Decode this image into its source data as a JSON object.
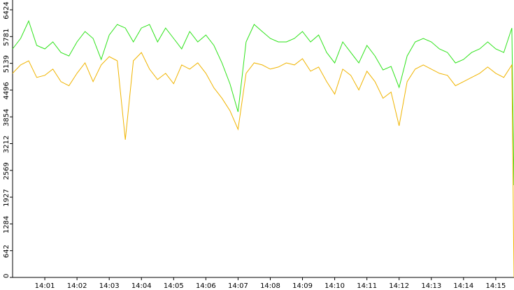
{
  "chart_data": {
    "type": "line",
    "x": [
      "14:00:00",
      "14:00:15",
      "14:00:30",
      "14:00:45",
      "14:01:00",
      "14:01:15",
      "14:01:30",
      "14:01:45",
      "14:02:00",
      "14:02:15",
      "14:02:30",
      "14:02:45",
      "14:03:00",
      "14:03:15",
      "14:03:30",
      "14:03:45",
      "14:04:00",
      "14:04:15",
      "14:04:30",
      "14:04:45",
      "14:05:00",
      "14:05:15",
      "14:05:30",
      "14:05:45",
      "14:06:00",
      "14:06:15",
      "14:06:30",
      "14:06:45",
      "14:07:00",
      "14:07:15",
      "14:07:30",
      "14:07:45",
      "14:08:00",
      "14:08:15",
      "14:08:30",
      "14:08:45",
      "14:09:00",
      "14:09:15",
      "14:09:30",
      "14:09:45",
      "14:10:00",
      "14:10:15",
      "14:10:30",
      "14:10:45",
      "14:11:00",
      "14:11:15",
      "14:11:30",
      "14:11:45",
      "14:12:00",
      "14:12:15",
      "14:12:30",
      "14:12:45",
      "14:13:00",
      "14:13:15",
      "14:13:30",
      "14:13:45",
      "14:14:00",
      "14:14:15",
      "14:14:30",
      "14:14:45",
      "14:15:00",
      "14:15:15",
      "14:15:30",
      "14:15:34"
    ],
    "series": [
      {
        "name": "green",
        "color": "#2ee31a",
        "values": [
          5484,
          5736,
          6155,
          5568,
          5484,
          5652,
          5400,
          5316,
          5652,
          5903,
          5736,
          5232,
          5819,
          6071,
          5987,
          5652,
          5987,
          6071,
          5652,
          5987,
          5736,
          5484,
          5903,
          5652,
          5819,
          5568,
          5148,
          4645,
          3974,
          5652,
          6071,
          5903,
          5736,
          5652,
          5652,
          5736,
          5903,
          5652,
          5819,
          5400,
          5148,
          5652,
          5400,
          5148,
          5568,
          5316,
          4980,
          5064,
          4561,
          5316,
          5652,
          5736,
          5652,
          5484,
          5400,
          5148,
          5232,
          5400,
          5484,
          5652,
          5484,
          5400,
          5987,
          2214
        ]
      },
      {
        "name": "orange",
        "color": "#f0b400",
        "values": [
          4900,
          5100,
          5200,
          4800,
          4850,
          5000,
          4700,
          4600,
          4900,
          5150,
          4700,
          5100,
          5300,
          5200,
          3304,
          5200,
          5400,
          5000,
          4750,
          4900,
          4650,
          5100,
          5000,
          5150,
          4900,
          4550,
          4300,
          4000,
          3555,
          4900,
          5150,
          5100,
          5000,
          5050,
          5150,
          5100,
          5250,
          4950,
          5050,
          4700,
          4400,
          5000,
          4850,
          4500,
          4950,
          4700,
          4300,
          4450,
          3639,
          4700,
          5000,
          5100,
          5000,
          4900,
          4850,
          4600,
          4700,
          4800,
          4900,
          5050,
          4900,
          4800,
          5100,
          0
        ]
      }
    ],
    "xlim": [
      "14:00:00",
      "14:15:34"
    ],
    "xticks": [
      {
        "value": "14:01:00",
        "label": "14:01"
      },
      {
        "value": "14:02:00",
        "label": "14:02"
      },
      {
        "value": "14:03:00",
        "label": "14:03"
      },
      {
        "value": "14:04:00",
        "label": "14:04"
      },
      {
        "value": "14:05:00",
        "label": "14:05"
      },
      {
        "value": "14:06:00",
        "label": "14:06"
      },
      {
        "value": "14:07:00",
        "label": "14:07"
      },
      {
        "value": "14:08:00",
        "label": "14:08"
      },
      {
        "value": "14:09:00",
        "label": "14:09"
      },
      {
        "value": "14:10:00",
        "label": "14:10"
      },
      {
        "value": "14:11:00",
        "label": "14:11"
      },
      {
        "value": "14:12:00",
        "label": "14:12"
      },
      {
        "value": "14:13:00",
        "label": "14:13"
      },
      {
        "value": "14:14:00",
        "label": "14:14"
      },
      {
        "value": "14:15:00",
        "label": "14:15"
      }
    ],
    "ylim": [
      0,
      6424
    ],
    "yticks": [
      0,
      642,
      1284,
      1927,
      2569,
      3212,
      3854,
      4496,
      5139,
      5781,
      6424
    ]
  }
}
